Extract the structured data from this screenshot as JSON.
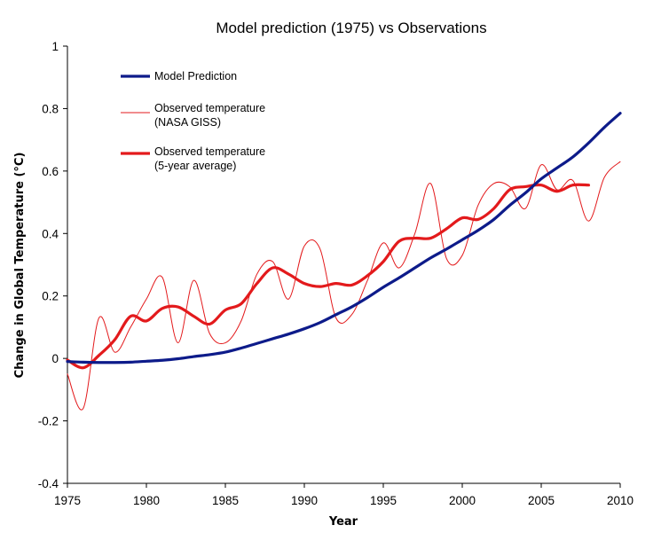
{
  "chart_data": {
    "type": "line",
    "title": "Model prediction (1975) vs Observations",
    "xlabel": "Year",
    "ylabel": "Change in Global Temperature (°C)",
    "xlim": [
      1975,
      2010
    ],
    "ylim": [
      -0.4,
      1
    ],
    "x_ticks": [
      "1975",
      "1980",
      "1985",
      "1990",
      "1995",
      "2000",
      "2005",
      "2010"
    ],
    "y_ticks": [
      "1",
      "0.8",
      "0.6",
      "0.4",
      "0.2",
      "0",
      "-0.2",
      "-0.4"
    ],
    "legend_position": "top-left",
    "legend": [
      {
        "series": "model",
        "lines": [
          "Model Prediction"
        ]
      },
      {
        "series": "giss",
        "lines": [
          "Observed temperature",
          "(NASA GISS)"
        ]
      },
      {
        "series": "avg5",
        "lines": [
          "Observed temperature",
          "(5-year average)"
        ]
      }
    ],
    "series": [
      {
        "key": "model",
        "name": "Model Prediction",
        "color": "#0d1b8a",
        "width": "thick",
        "x": [
          1975,
          1976,
          1977,
          1978,
          1979,
          1980,
          1981,
          1982,
          1983,
          1984,
          1985,
          1986,
          1987,
          1988,
          1989,
          1990,
          1991,
          1992,
          1993,
          1994,
          1995,
          1996,
          1997,
          1998,
          1999,
          2000,
          2001,
          2002,
          2003,
          2004,
          2005,
          2006,
          2007,
          2008,
          2009,
          2010
        ],
        "y": [
          -0.01,
          -0.012,
          -0.013,
          -0.013,
          -0.012,
          -0.009,
          -0.006,
          -0.001,
          0.006,
          0.012,
          0.02,
          0.033,
          0.048,
          0.063,
          0.078,
          0.095,
          0.115,
          0.14,
          0.165,
          0.195,
          0.228,
          0.258,
          0.29,
          0.322,
          0.35,
          0.38,
          0.41,
          0.445,
          0.49,
          0.53,
          0.575,
          0.61,
          0.645,
          0.69,
          0.74,
          0.785
        ]
      },
      {
        "key": "giss",
        "name": "Observed temperature (NASA GISS)",
        "color": "#e31a1c",
        "width": "thin",
        "x": [
          1975,
          1976,
          1977,
          1978,
          1979,
          1980,
          1981,
          1982,
          1983,
          1984,
          1985,
          1986,
          1987,
          1988,
          1989,
          1990,
          1991,
          1992,
          1993,
          1994,
          1995,
          1996,
          1997,
          1998,
          1999,
          2000,
          2001,
          2002,
          2003,
          2004,
          2005,
          2006,
          2007,
          2008,
          2009,
          2010
        ],
        "y": [
          -0.05,
          -0.16,
          0.13,
          0.02,
          0.1,
          0.19,
          0.26,
          0.05,
          0.25,
          0.08,
          0.05,
          0.12,
          0.27,
          0.31,
          0.19,
          0.36,
          0.35,
          0.13,
          0.14,
          0.25,
          0.37,
          0.29,
          0.4,
          0.56,
          0.32,
          0.33,
          0.49,
          0.56,
          0.55,
          0.48,
          0.62,
          0.54,
          0.57,
          0.44,
          0.58,
          0.63
        ]
      },
      {
        "key": "avg5",
        "name": "Observed temperature (5-year average)",
        "color": "#e31a1c",
        "width": "thick",
        "x": [
          1975,
          1976,
          1977,
          1978,
          1979,
          1980,
          1981,
          1982,
          1983,
          1984,
          1985,
          1986,
          1987,
          1988,
          1989,
          1990,
          1991,
          1992,
          1993,
          1994,
          1995,
          1996,
          1997,
          1998,
          1999,
          2000,
          2001,
          2002,
          2003,
          2004,
          2005,
          2006,
          2007,
          2008
        ],
        "y": [
          -0.005,
          -0.03,
          0.01,
          0.06,
          0.135,
          0.12,
          0.16,
          0.165,
          0.135,
          0.11,
          0.155,
          0.175,
          0.24,
          0.29,
          0.27,
          0.24,
          0.23,
          0.24,
          0.235,
          0.265,
          0.31,
          0.375,
          0.385,
          0.385,
          0.415,
          0.45,
          0.445,
          0.48,
          0.54,
          0.55,
          0.555,
          0.535,
          0.555,
          0.555
        ]
      }
    ]
  }
}
